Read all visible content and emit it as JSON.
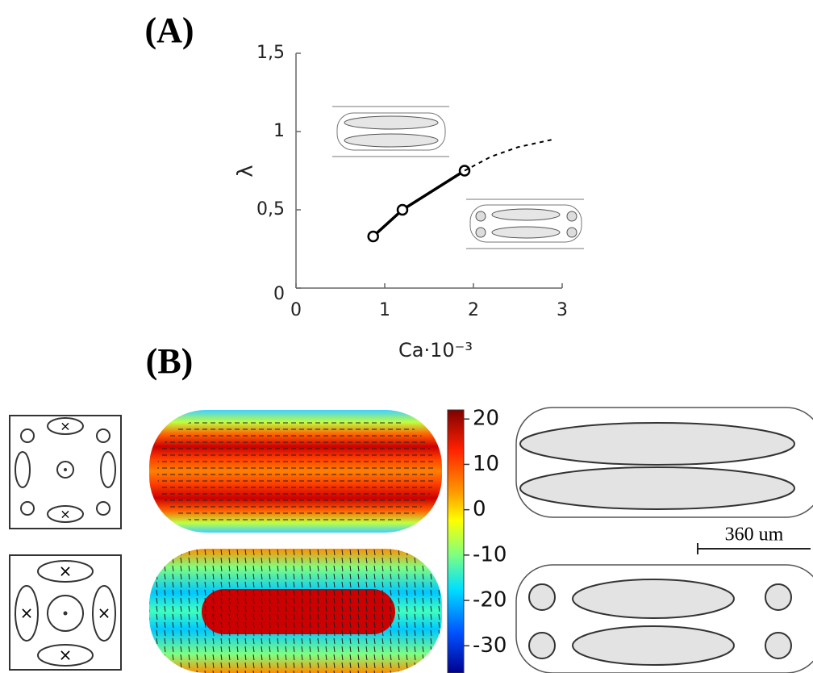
{
  "panel_labels": [
    "(A)",
    "(B)"
  ],
  "chart_data": {
    "type": "line",
    "xlabel": "Ca·10⁻³",
    "ylabel": "λ",
    "xlim": [
      0,
      3
    ],
    "ylim": [
      0,
      1.5
    ],
    "xticks": [
      0,
      1,
      2,
      3
    ],
    "yticks": [
      0,
      {
        "value": 0.5,
        "label": "0,5"
      },
      1,
      {
        "value": 1.5,
        "label": "1,5"
      }
    ],
    "series": [
      {
        "color": "#000000",
        "style": "solid",
        "markers": true,
        "x": [
          0.87,
          1.2,
          1.9
        ],
        "values": [
          0.33,
          0.5,
          0.75
        ]
      },
      {
        "color": "#000000",
        "style": "dashed",
        "markers": false,
        "x": [
          1.9,
          2.2,
          2.5,
          2.9
        ],
        "values": [
          0.75,
          0.84,
          0.9,
          0.95
        ]
      }
    ]
  },
  "colorbar": {
    "lim": [
      -36,
      22
    ],
    "ticks": [
      20,
      10,
      0,
      -10,
      -20,
      -30
    ]
  },
  "scale_bar": "360 um"
}
